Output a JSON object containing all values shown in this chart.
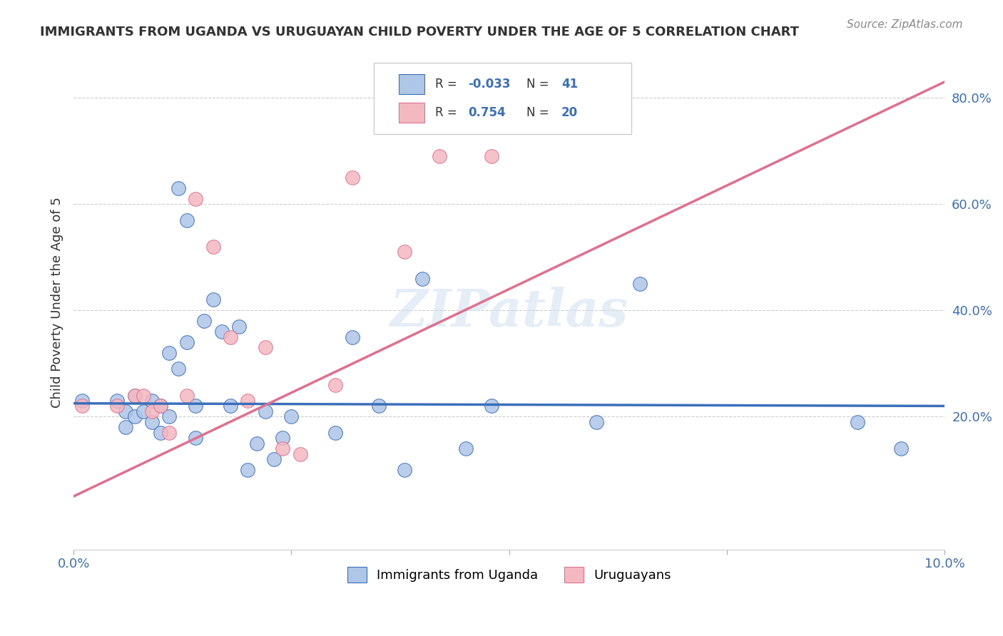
{
  "title": "IMMIGRANTS FROM UGANDA VS URUGUAYAN CHILD POVERTY UNDER THE AGE OF 5 CORRELATION CHART",
  "source": "Source: ZipAtlas.com",
  "ylabel": "Child Poverty Under the Age of 5",
  "y_ticks": [
    0.0,
    0.2,
    0.4,
    0.6,
    0.8
  ],
  "y_tick_labels": [
    "",
    "20.0%",
    "40.0%",
    "60.0%",
    "80.0%"
  ],
  "xlim": [
    0.0,
    0.1
  ],
  "ylim": [
    -0.05,
    0.88
  ],
  "watermark": "ZIPatlas",
  "blue_R": "-0.033",
  "blue_N": "41",
  "pink_R": "0.754",
  "pink_N": "20",
  "blue_scatter_x": [
    0.001,
    0.005,
    0.006,
    0.006,
    0.007,
    0.007,
    0.008,
    0.009,
    0.009,
    0.01,
    0.01,
    0.011,
    0.011,
    0.012,
    0.012,
    0.013,
    0.013,
    0.014,
    0.014,
    0.015,
    0.016,
    0.017,
    0.018,
    0.019,
    0.02,
    0.021,
    0.022,
    0.023,
    0.024,
    0.025,
    0.03,
    0.032,
    0.035,
    0.038,
    0.04,
    0.045,
    0.048,
    0.06,
    0.065,
    0.09,
    0.095
  ],
  "blue_scatter_y": [
    0.23,
    0.23,
    0.18,
    0.21,
    0.2,
    0.24,
    0.21,
    0.23,
    0.19,
    0.22,
    0.17,
    0.2,
    0.32,
    0.29,
    0.63,
    0.57,
    0.34,
    0.16,
    0.22,
    0.38,
    0.42,
    0.36,
    0.22,
    0.37,
    0.1,
    0.15,
    0.21,
    0.12,
    0.16,
    0.2,
    0.17,
    0.35,
    0.22,
    0.1,
    0.46,
    0.14,
    0.22,
    0.19,
    0.45,
    0.19,
    0.14
  ],
  "pink_scatter_x": [
    0.001,
    0.005,
    0.007,
    0.008,
    0.009,
    0.01,
    0.011,
    0.013,
    0.014,
    0.016,
    0.018,
    0.02,
    0.022,
    0.024,
    0.026,
    0.03,
    0.032,
    0.038,
    0.042,
    0.048
  ],
  "pink_scatter_y": [
    0.22,
    0.22,
    0.24,
    0.24,
    0.21,
    0.22,
    0.17,
    0.24,
    0.61,
    0.52,
    0.35,
    0.23,
    0.33,
    0.14,
    0.13,
    0.26,
    0.65,
    0.51,
    0.69,
    0.69
  ],
  "blue_line_x": [
    0.0,
    0.1
  ],
  "blue_line_y_intercept": 0.225,
  "blue_line_slope": -0.05,
  "pink_line_x": [
    0.0,
    0.1
  ],
  "pink_line_y_intercept": 0.05,
  "pink_line_slope": 7.8,
  "dot_size": 200,
  "blue_color": "#aec6e8",
  "pink_color": "#f4b8c1",
  "blue_line_color": "#3b6fba",
  "pink_line_color": "#e07090",
  "grid_color": "#cccccc",
  "background_color": "#ffffff"
}
